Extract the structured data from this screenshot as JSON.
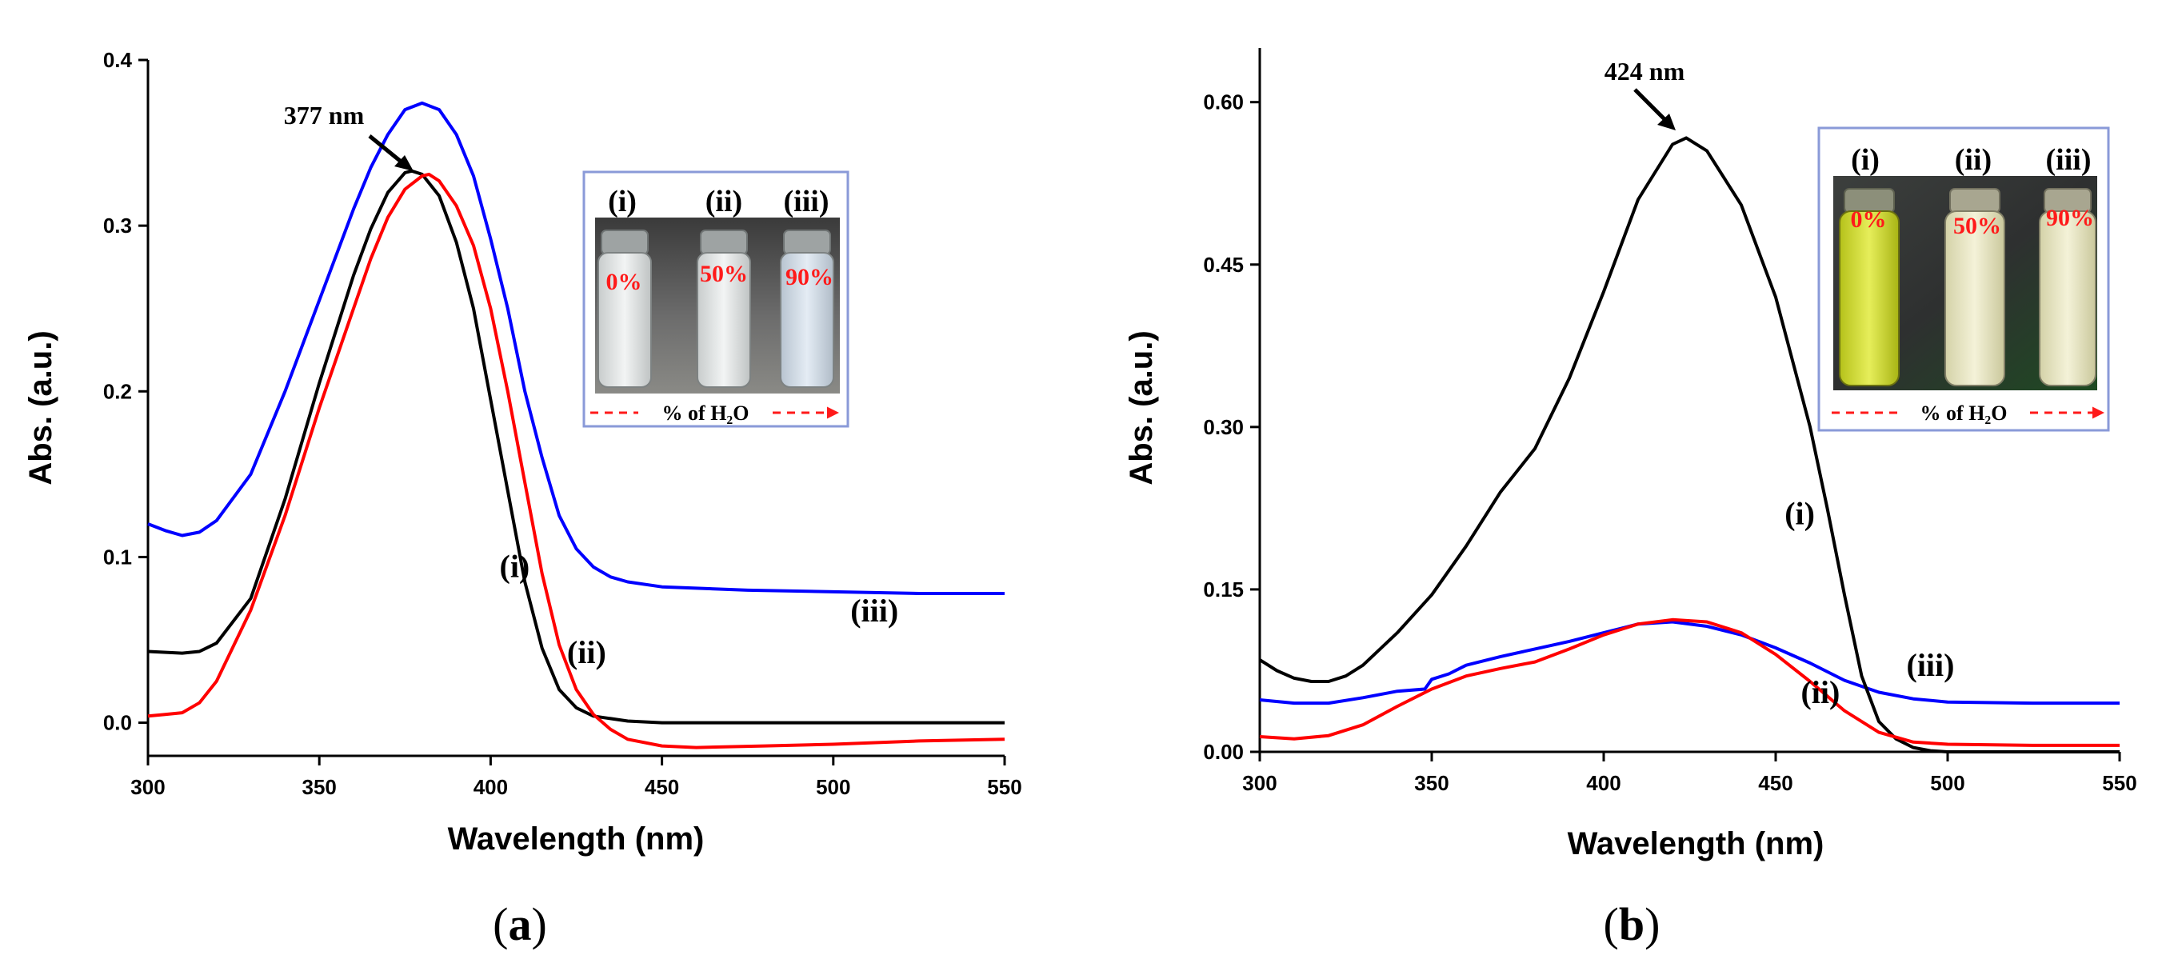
{
  "chart_data": [
    {
      "panel": "(a)",
      "panel_letter": "a",
      "type": "line",
      "xlabel": "Wavelength (nm)",
      "ylabel": "Abs. (a.u.)",
      "xlim": [
        300,
        550
      ],
      "ylim": [
        -0.02,
        0.4
      ],
      "x_ticks": [
        300,
        350,
        400,
        450,
        500,
        550
      ],
      "y_ticks": [
        0.0,
        0.1,
        0.2,
        0.3,
        0.4
      ],
      "x_tick_labels": [
        "300",
        "350",
        "400",
        "450",
        "500",
        "550"
      ],
      "y_tick_labels": [
        "0.0",
        "0.1",
        "0.2",
        "0.3",
        "0.4"
      ],
      "annotation": {
        "text": "377 nm",
        "x": 377,
        "y": 0.333
      },
      "series": [
        {
          "label": "(i)",
          "color": "#000000",
          "label_x": 407,
          "label_y": 0.088,
          "points": [
            [
              300,
              0.043
            ],
            [
              310,
              0.042
            ],
            [
              315,
              0.043
            ],
            [
              320,
              0.048
            ],
            [
              330,
              0.075
            ],
            [
              340,
              0.135
            ],
            [
              350,
              0.205
            ],
            [
              360,
              0.27
            ],
            [
              365,
              0.298
            ],
            [
              370,
              0.32
            ],
            [
              375,
              0.332
            ],
            [
              377,
              0.333
            ],
            [
              380,
              0.331
            ],
            [
              385,
              0.318
            ],
            [
              390,
              0.29
            ],
            [
              395,
              0.25
            ],
            [
              400,
              0.195
            ],
            [
              405,
              0.14
            ],
            [
              410,
              0.085
            ],
            [
              415,
              0.045
            ],
            [
              420,
              0.02
            ],
            [
              425,
              0.009
            ],
            [
              430,
              0.004
            ],
            [
              440,
              0.001
            ],
            [
              450,
              0.0
            ],
            [
              500,
              0.0
            ],
            [
              550,
              0.0
            ]
          ]
        },
        {
          "label": "(ii)",
          "color": "#ff0000",
          "label_x": 428,
          "label_y": 0.036,
          "points": [
            [
              300,
              0.004
            ],
            [
              305,
              0.005
            ],
            [
              310,
              0.006
            ],
            [
              315,
              0.012
            ],
            [
              320,
              0.025
            ],
            [
              330,
              0.068
            ],
            [
              340,
              0.125
            ],
            [
              350,
              0.19
            ],
            [
              360,
              0.25
            ],
            [
              365,
              0.28
            ],
            [
              370,
              0.305
            ],
            [
              375,
              0.322
            ],
            [
              380,
              0.33
            ],
            [
              382,
              0.331
            ],
            [
              385,
              0.327
            ],
            [
              390,
              0.312
            ],
            [
              395,
              0.288
            ],
            [
              400,
              0.25
            ],
            [
              405,
              0.2
            ],
            [
              410,
              0.145
            ],
            [
              415,
              0.09
            ],
            [
              420,
              0.047
            ],
            [
              425,
              0.02
            ],
            [
              430,
              0.005
            ],
            [
              435,
              -0.004
            ],
            [
              440,
              -0.01
            ],
            [
              450,
              -0.014
            ],
            [
              460,
              -0.015
            ],
            [
              480,
              -0.014
            ],
            [
              500,
              -0.013
            ],
            [
              525,
              -0.011
            ],
            [
              550,
              -0.01
            ]
          ]
        },
        {
          "label": "(iii)",
          "color": "#0000ff",
          "label_x": 512,
          "label_y": 0.061,
          "points": [
            [
              300,
              0.12
            ],
            [
              305,
              0.116
            ],
            [
              310,
              0.113
            ],
            [
              315,
              0.115
            ],
            [
              320,
              0.122
            ],
            [
              330,
              0.15
            ],
            [
              340,
              0.2
            ],
            [
              350,
              0.255
            ],
            [
              360,
              0.31
            ],
            [
              365,
              0.335
            ],
            [
              370,
              0.355
            ],
            [
              375,
              0.37
            ],
            [
              380,
              0.374
            ],
            [
              385,
              0.37
            ],
            [
              390,
              0.355
            ],
            [
              395,
              0.33
            ],
            [
              400,
              0.292
            ],
            [
              405,
              0.25
            ],
            [
              410,
              0.2
            ],
            [
              415,
              0.16
            ],
            [
              420,
              0.125
            ],
            [
              425,
              0.105
            ],
            [
              430,
              0.094
            ],
            [
              435,
              0.088
            ],
            [
              440,
              0.085
            ],
            [
              450,
              0.082
            ],
            [
              475,
              0.08
            ],
            [
              500,
              0.079
            ],
            [
              525,
              0.078
            ],
            [
              550,
              0.078
            ]
          ]
        }
      ],
      "inset": {
        "vial_labels": [
          "(i)",
          "(ii)",
          "(iii)"
        ],
        "percentages": [
          "0%",
          "50%",
          "90%"
        ],
        "axis_label": "% of H₂O"
      }
    },
    {
      "panel": "(b)",
      "panel_letter": "b",
      "type": "line",
      "xlabel": "Wavelength (nm)",
      "ylabel": "Abs. (a.u.)",
      "xlim": [
        300,
        550
      ],
      "ylim": [
        0,
        0.65
      ],
      "x_ticks": [
        300,
        350,
        400,
        450,
        500,
        550
      ],
      "y_ticks": [
        0.0,
        0.15,
        0.3,
        0.45,
        0.6
      ],
      "x_tick_labels": [
        "300",
        "350",
        "400",
        "450",
        "500",
        "550"
      ],
      "y_tick_labels": [
        "0.00",
        "0.15",
        "0.30",
        "0.45",
        "0.60"
      ],
      "annotation": {
        "text": "424 nm",
        "x": 424,
        "y": 0.567
      },
      "series": [
        {
          "label": "(i)",
          "color": "#000000",
          "label_x": 457,
          "label_y": 0.21,
          "points": [
            [
              300,
              0.085
            ],
            [
              305,
              0.075
            ],
            [
              310,
              0.068
            ],
            [
              315,
              0.065
            ],
            [
              320,
              0.065
            ],
            [
              325,
              0.07
            ],
            [
              330,
              0.08
            ],
            [
              340,
              0.11
            ],
            [
              350,
              0.145
            ],
            [
              360,
              0.19
            ],
            [
              370,
              0.24
            ],
            [
              380,
              0.28
            ],
            [
              390,
              0.345
            ],
            [
              400,
              0.425
            ],
            [
              410,
              0.51
            ],
            [
              420,
              0.561
            ],
            [
              424,
              0.567
            ],
            [
              430,
              0.555
            ],
            [
              440,
              0.505
            ],
            [
              450,
              0.42
            ],
            [
              460,
              0.3
            ],
            [
              465,
              0.225
            ],
            [
              470,
              0.145
            ],
            [
              475,
              0.07
            ],
            [
              480,
              0.028
            ],
            [
              485,
              0.012
            ],
            [
              490,
              0.004
            ],
            [
              495,
              0.001
            ],
            [
              500,
              0.0
            ],
            [
              550,
              0.0
            ]
          ]
        },
        {
          "label": "(ii)",
          "color": "#ff0000",
          "label_x": 463,
          "label_y": 0.045,
          "points": [
            [
              300,
              0.014
            ],
            [
              310,
              0.012
            ],
            [
              320,
              0.015
            ],
            [
              330,
              0.025
            ],
            [
              340,
              0.042
            ],
            [
              350,
              0.058
            ],
            [
              360,
              0.07
            ],
            [
              370,
              0.077
            ],
            [
              380,
              0.083
            ],
            [
              390,
              0.095
            ],
            [
              400,
              0.108
            ],
            [
              410,
              0.118
            ],
            [
              420,
              0.122
            ],
            [
              430,
              0.12
            ],
            [
              440,
              0.11
            ],
            [
              450,
              0.09
            ],
            [
              460,
              0.065
            ],
            [
              470,
              0.038
            ],
            [
              480,
              0.018
            ],
            [
              490,
              0.009
            ],
            [
              500,
              0.007
            ],
            [
              525,
              0.006
            ],
            [
              550,
              0.006
            ]
          ]
        },
        {
          "label": "(iii)",
          "color": "#0000ff",
          "label_x": 495,
          "label_y": 0.07,
          "points": [
            [
              300,
              0.048
            ],
            [
              310,
              0.045
            ],
            [
              320,
              0.045
            ],
            [
              330,
              0.05
            ],
            [
              340,
              0.056
            ],
            [
              348,
              0.058
            ],
            [
              350,
              0.067
            ],
            [
              355,
              0.072
            ],
            [
              360,
              0.08
            ],
            [
              370,
              0.088
            ],
            [
              380,
              0.095
            ],
            [
              390,
              0.102
            ],
            [
              400,
              0.11
            ],
            [
              410,
              0.118
            ],
            [
              420,
              0.12
            ],
            [
              430,
              0.116
            ],
            [
              440,
              0.108
            ],
            [
              450,
              0.096
            ],
            [
              460,
              0.082
            ],
            [
              470,
              0.066
            ],
            [
              480,
              0.055
            ],
            [
              490,
              0.049
            ],
            [
              500,
              0.046
            ],
            [
              525,
              0.045
            ],
            [
              550,
              0.045
            ]
          ]
        }
      ],
      "inset": {
        "vial_labels": [
          "(i)",
          "(ii)",
          "(iii)"
        ],
        "percentages": [
          "0%",
          "50%",
          "90%"
        ],
        "axis_label": "% of H₂O"
      }
    }
  ]
}
